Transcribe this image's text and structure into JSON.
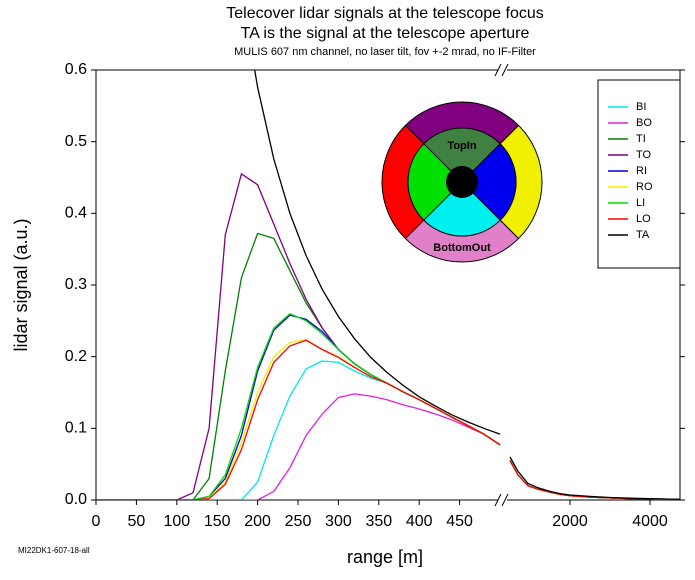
{
  "chart_data": {
    "type": "line",
    "title": "Telecover lidar signals at the telescope focus",
    "subtitle": "TA is the signal at the telescope aperture",
    "note": "MULIS 607 nm channel, no laser tilt, fov +-2 mrad, no IF-Filter",
    "xlabel": "range [m]",
    "ylabel": "lidar signal (a.u.)",
    "footnote": "MI22DK1-607-18-all",
    "annotations": [
      "TopIn",
      "BottomOut"
    ],
    "legend": "upper right",
    "xlim": [
      0,
      500
    ],
    "xticks": [
      0,
      50,
      100,
      150,
      200,
      250,
      300,
      350,
      400,
      450
    ],
    "x_right_lim": [
      400,
      4750
    ],
    "x_right_ticks": [
      2000,
      4000
    ],
    "ylim": [
      0,
      0.6
    ],
    "yticks": [
      {
        "value": 0,
        "label": "0.0"
      },
      0.1,
      0.2,
      0.3,
      0.4,
      0.5,
      0.6
    ],
    "x": [
      0,
      20,
      40,
      60,
      80,
      100,
      120,
      140,
      160,
      180,
      200,
      220,
      240,
      260,
      280,
      300,
      320,
      340,
      360,
      380,
      400,
      420,
      440,
      460,
      480,
      500
    ],
    "x_right": [
      500,
      700,
      950,
      1200,
      1500,
      1750,
      2000,
      2500,
      3000,
      3500,
      4000,
      4500,
      4750
    ],
    "series": [
      {
        "name": "BI",
        "color": "#00e8f0",
        "values": [
          0,
          0,
          0,
          0,
          0,
          0,
          0,
          0,
          0,
          0,
          0.025,
          0.09,
          0.145,
          0.183,
          0.194,
          0.192,
          0.18,
          0.17,
          0.163,
          0.151,
          0.14,
          0.128,
          0.116,
          0.104,
          0.092,
          0.077
        ],
        "values_right": [
          0.055,
          0.035,
          0.02,
          0.015,
          0.011,
          0.008,
          0.006,
          0.004,
          0.003,
          0.002,
          0.0015,
          0.001,
          0.001
        ]
      },
      {
        "name": "BO",
        "color": "#e020e0",
        "values": [
          0,
          0,
          0,
          0,
          0,
          0,
          0,
          0,
          0,
          0,
          0,
          0.012,
          0.045,
          0.09,
          0.12,
          0.143,
          0.148,
          0.145,
          0.14,
          0.133,
          0.127,
          0.12,
          0.112,
          0.102,
          0.092,
          0.077
        ],
        "values_right": [
          0.055,
          0.035,
          0.02,
          0.015,
          0.011,
          0.008,
          0.006,
          0.004,
          0.003,
          0.002,
          0.0015,
          0.001,
          0.001
        ]
      },
      {
        "name": "TI",
        "color": "#008000",
        "values": [
          0,
          0,
          0,
          0,
          0,
          0,
          0,
          0.03,
          0.18,
          0.31,
          0.372,
          0.365,
          0.32,
          0.275,
          0.24,
          0.21,
          0.19,
          0.175,
          0.163,
          0.151,
          0.14,
          0.128,
          0.116,
          0.104,
          0.092,
          0.077
        ],
        "values_right": [
          0.055,
          0.035,
          0.02,
          0.015,
          0.011,
          0.008,
          0.006,
          0.004,
          0.003,
          0.002,
          0.0015,
          0.001,
          0.001
        ]
      },
      {
        "name": "TO",
        "color": "#800080",
        "values": [
          0,
          0,
          0,
          0,
          0,
          0,
          0.01,
          0.1,
          0.37,
          0.455,
          0.44,
          0.385,
          0.33,
          0.28,
          0.24,
          0.21,
          0.19,
          0.175,
          0.163,
          0.151,
          0.14,
          0.128,
          0.116,
          0.104,
          0.092,
          0.077
        ],
        "values_right": [
          0.055,
          0.035,
          0.02,
          0.015,
          0.011,
          0.008,
          0.006,
          0.004,
          0.003,
          0.002,
          0.0015,
          0.001,
          0.001
        ]
      },
      {
        "name": "RI",
        "color": "#0000cc",
        "values": [
          0,
          0,
          0,
          0,
          0,
          0,
          0,
          0.005,
          0.03,
          0.09,
          0.18,
          0.237,
          0.258,
          0.252,
          0.235,
          0.21,
          0.19,
          0.175,
          0.163,
          0.151,
          0.14,
          0.128,
          0.116,
          0.104,
          0.092,
          0.077
        ],
        "values_right": [
          0.055,
          0.035,
          0.02,
          0.015,
          0.011,
          0.008,
          0.006,
          0.004,
          0.003,
          0.002,
          0.0015,
          0.001,
          0.001
        ]
      },
      {
        "name": "RO",
        "color": "#f0f000",
        "values": [
          0,
          0,
          0,
          0,
          0,
          0,
          0,
          0.002,
          0.025,
          0.08,
          0.15,
          0.2,
          0.22,
          0.224,
          0.21,
          0.2,
          0.185,
          0.172,
          0.163,
          0.151,
          0.14,
          0.128,
          0.116,
          0.104,
          0.092,
          0.077
        ],
        "values_right": [
          0.055,
          0.035,
          0.02,
          0.015,
          0.011,
          0.008,
          0.006,
          0.004,
          0.003,
          0.002,
          0.0015,
          0.001,
          0.001
        ]
      },
      {
        "name": "LI",
        "color": "#00dd00",
        "values": [
          0,
          0,
          0,
          0,
          0,
          0,
          0,
          0.005,
          0.035,
          0.1,
          0.185,
          0.24,
          0.26,
          0.25,
          0.232,
          0.21,
          0.19,
          0.175,
          0.163,
          0.151,
          0.14,
          0.128,
          0.116,
          0.104,
          0.092,
          0.077
        ],
        "values_right": [
          0.055,
          0.035,
          0.02,
          0.015,
          0.011,
          0.008,
          0.006,
          0.004,
          0.003,
          0.002,
          0.0015,
          0.001,
          0.001
        ]
      },
      {
        "name": "LO",
        "color": "#ff0000",
        "values": [
          0,
          0,
          0,
          0,
          0,
          0,
          0,
          0.002,
          0.022,
          0.07,
          0.14,
          0.192,
          0.215,
          0.223,
          0.21,
          0.199,
          0.185,
          0.172,
          0.163,
          0.151,
          0.14,
          0.128,
          0.116,
          0.104,
          0.092,
          0.077
        ],
        "values_right": [
          0.055,
          0.035,
          0.02,
          0.015,
          0.011,
          0.008,
          0.006,
          0.004,
          0.003,
          0.002,
          0.0015,
          0.001,
          0.001
        ]
      },
      {
        "name": "TA",
        "color": "#000000",
        "values": [
          null,
          null,
          null,
          null,
          null,
          null,
          null,
          null,
          null,
          0.71,
          0.576,
          0.476,
          0.4,
          0.341,
          0.294,
          0.256,
          0.225,
          0.199,
          0.178,
          0.16,
          0.144,
          0.131,
          0.119,
          0.109,
          0.1,
          0.092
        ],
        "values_right": [
          0.06,
          0.04,
          0.023,
          0.017,
          0.012,
          0.009,
          0.007,
          0.005,
          0.0035,
          0.0025,
          0.002,
          0.0012,
          0.001
        ]
      }
    ]
  }
}
